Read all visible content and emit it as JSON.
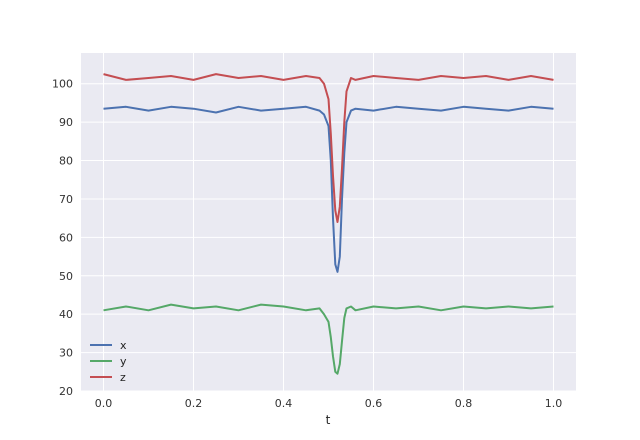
{
  "chart_data": {
    "type": "line",
    "title": "",
    "xlabel": "t",
    "ylabel": "",
    "xlim": [
      -0.05,
      1.05
    ],
    "ylim": [
      20,
      108
    ],
    "xticks": [
      0.0,
      0.2,
      0.4,
      0.6,
      0.8,
      1.0
    ],
    "xtick_labels": [
      "0.0",
      "0.2",
      "0.4",
      "0.6",
      "0.8",
      "1.0"
    ],
    "yticks": [
      20,
      30,
      40,
      50,
      60,
      70,
      80,
      90,
      100
    ],
    "ytick_labels": [
      "20",
      "30",
      "40",
      "50",
      "60",
      "70",
      "80",
      "90",
      "100"
    ],
    "grid": true,
    "legend_position": "lower-left",
    "x": [
      0.0,
      0.05,
      0.1,
      0.15,
      0.2,
      0.25,
      0.3,
      0.35,
      0.4,
      0.45,
      0.48,
      0.49,
      0.5,
      0.505,
      0.51,
      0.515,
      0.52,
      0.525,
      0.53,
      0.535,
      0.54,
      0.55,
      0.56,
      0.6,
      0.65,
      0.7,
      0.75,
      0.8,
      0.85,
      0.9,
      0.95,
      1.0
    ],
    "series": [
      {
        "name": "x",
        "color": "#4c72b0",
        "values": [
          93.5,
          94,
          93,
          94,
          93.5,
          92.5,
          94,
          93,
          93.5,
          94,
          93,
          92,
          89,
          80,
          65,
          53,
          51,
          55,
          70,
          82,
          90,
          93,
          93.5,
          93,
          94,
          93.5,
          93,
          94,
          93.5,
          93,
          94,
          93.5
        ]
      },
      {
        "name": "y",
        "color": "#55a868",
        "values": [
          41,
          42,
          41,
          42.5,
          41.5,
          42,
          41,
          42.5,
          42,
          41,
          41.5,
          40,
          38,
          34,
          29,
          25,
          24.5,
          27,
          33,
          39,
          41.5,
          42,
          41,
          42,
          41.5,
          42,
          41,
          42,
          41.5,
          42,
          41.5,
          42
        ]
      },
      {
        "name": "z",
        "color": "#c44e52",
        "values": [
          102.5,
          101,
          101.5,
          102,
          101,
          102.5,
          101.5,
          102,
          101,
          102,
          101.5,
          100,
          96,
          87,
          76,
          67,
          64,
          68,
          78,
          90,
          98,
          101.5,
          101,
          102,
          101.5,
          101,
          102,
          101.5,
          102,
          101,
          102,
          101
        ]
      }
    ]
  }
}
